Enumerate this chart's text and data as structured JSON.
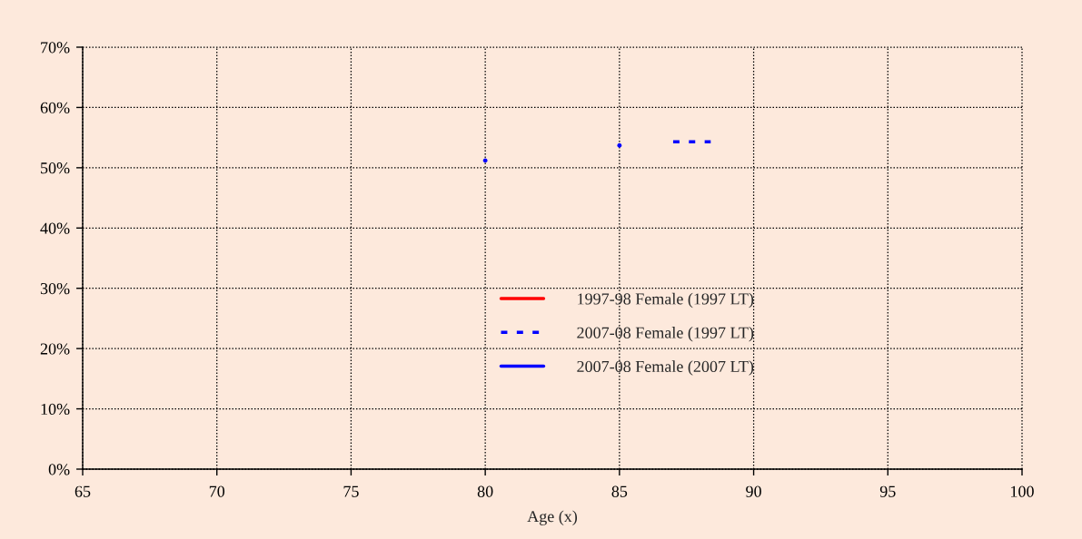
{
  "chart_data": {
    "type": "line",
    "xlabel": "Age (x)",
    "xlim": [
      65,
      100
    ],
    "xticks": [
      65,
      70,
      75,
      80,
      85,
      90,
      95,
      100
    ],
    "ylim": [
      0,
      70
    ],
    "yticks": [
      {
        "value": 0,
        "label": "0%"
      },
      {
        "value": 10,
        "label": "10%"
      },
      {
        "value": 20,
        "label": "20%"
      },
      {
        "value": 30,
        "label": "30%"
      },
      {
        "value": 40,
        "label": "40%"
      },
      {
        "value": 50,
        "label": "50%"
      },
      {
        "value": 60,
        "label": "60%"
      },
      {
        "value": 70,
        "label": "70%"
      }
    ],
    "grid": true,
    "legend": "bottom",
    "series": [
      {
        "name": "1997-98 Female (1997 LT)",
        "color": "#ff0000",
        "line_style": "solid"
      },
      {
        "name": "2007-08 Female (1997 LT)",
        "color": "#0000ff",
        "line_style": "dashed",
        "x": [
          87.0,
          88.4
        ],
        "values": [
          54.3,
          54.3
        ]
      },
      {
        "name": "2007-08 Female (2007 LT)",
        "color": "#0000ff",
        "line_style": "solid",
        "marker": "circle",
        "x": [
          80,
          null,
          85
        ],
        "values": [
          51.2,
          null,
          53.7
        ]
      }
    ]
  }
}
